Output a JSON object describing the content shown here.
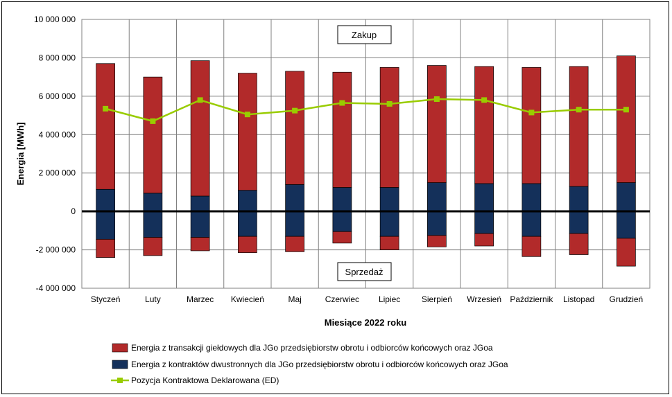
{
  "chart_data": {
    "type": "bar",
    "xlabel": "Miesiące 2022  roku",
    "ylabel": "Energia [MWh]",
    "ylim": [
      -4000000,
      10000000
    ],
    "yticks": [
      -4000000,
      -2000000,
      0,
      2000000,
      4000000,
      6000000,
      8000000,
      10000000
    ],
    "ytick_labels": [
      "-4 000 000",
      "-2 000 000",
      "0",
      "2 000 000",
      "4 000 000",
      "6 000 000",
      "8 000 000",
      "10 000 000"
    ],
    "grid": true,
    "legend_position": "bottom",
    "categories": [
      "Styczeń",
      "Luty",
      "Marzec",
      "Kwiecień",
      "Maj",
      "Czerwiec",
      "Lipiec",
      "Sierpień",
      "Wrzesień",
      "Październik",
      "Listopad",
      "Grudzień"
    ],
    "annotations": {
      "buy": "Zakup",
      "sell": "Sprzedaż"
    },
    "series": [
      {
        "name": "Energia z transakcji giełdowych dla JGo przedsiębiorstw obrotu i odbiorców końcowych oraz JGoa",
        "kind": "bar",
        "color": "#b22a2a",
        "positive": [
          6550000,
          6050000,
          7050000,
          6100000,
          5900000,
          6000000,
          6250000,
          6100000,
          6100000,
          6050000,
          6250000,
          6600000
        ],
        "negative": [
          -950000,
          -950000,
          -700000,
          -850000,
          -800000,
          -600000,
          -700000,
          -600000,
          -650000,
          -1050000,
          -1100000,
          -1450000
        ]
      },
      {
        "name": "Energia z kontraktów dwustronnych dla JGo przedsiębiorstw obrotu i odbiorców końcowych oraz JGoa",
        "kind": "bar",
        "color": "#14305a",
        "positive": [
          1150000,
          950000,
          800000,
          1100000,
          1400000,
          1250000,
          1250000,
          1500000,
          1450000,
          1450000,
          1300000,
          1500000
        ],
        "negative": [
          -1450000,
          -1350000,
          -1350000,
          -1300000,
          -1300000,
          -1050000,
          -1300000,
          -1250000,
          -1150000,
          -1300000,
          -1150000,
          -1400000
        ]
      },
      {
        "name": "Pozycja Kontraktowa Deklarowana (ED)",
        "kind": "line",
        "color": "#99cc00",
        "values": [
          5350000,
          4700000,
          5800000,
          5050000,
          5250000,
          5650000,
          5600000,
          5850000,
          5800000,
          5150000,
          5300000,
          5300000
        ]
      }
    ]
  }
}
